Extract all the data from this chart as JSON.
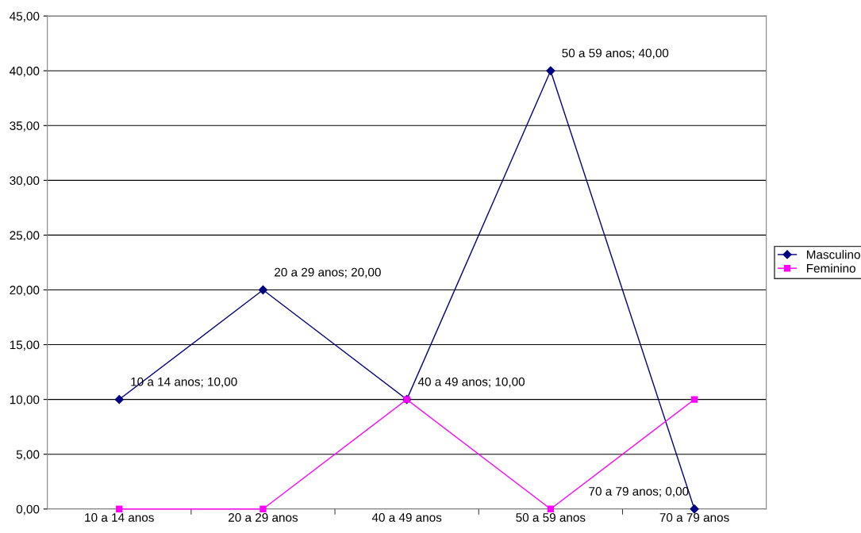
{
  "chart_data": {
    "type": "line",
    "categories": [
      "10 a 14 anos",
      "20 a 29 anos",
      "40 a 49 anos",
      "50 a 59 anos",
      "70 a 79 anos"
    ],
    "series": [
      {
        "name": "Masculino",
        "color": "#000080",
        "marker": "diamond",
        "values": [
          10,
          20,
          10,
          40,
          0
        ],
        "value_labels": [
          "10 a 14 anos; 10,00",
          "20 a 29 anos; 20,00",
          "40 a 49 anos; 10,00",
          "50 a 59 anos; 40,00",
          "70 a 79 anos; 0,00"
        ]
      },
      {
        "name": "Feminino",
        "color": "#ff00ff",
        "marker": "square",
        "values": [
          0,
          0,
          10,
          0,
          10
        ]
      }
    ],
    "ylim": [
      0,
      45
    ],
    "yticks": [
      {
        "value": 0,
        "label": "0,00"
      },
      {
        "value": 5,
        "label": "5,00"
      },
      {
        "value": 10,
        "label": "10,00"
      },
      {
        "value": 15,
        "label": "15,00"
      },
      {
        "value": 20,
        "label": "20,00"
      },
      {
        "value": 25,
        "label": "25,00"
      },
      {
        "value": 30,
        "label": "30,00"
      },
      {
        "value": 35,
        "label": "35,00"
      },
      {
        "value": 40,
        "label": "40,00"
      },
      {
        "value": 45,
        "label": "45,00"
      }
    ],
    "grid": "y",
    "legend": "right"
  }
}
